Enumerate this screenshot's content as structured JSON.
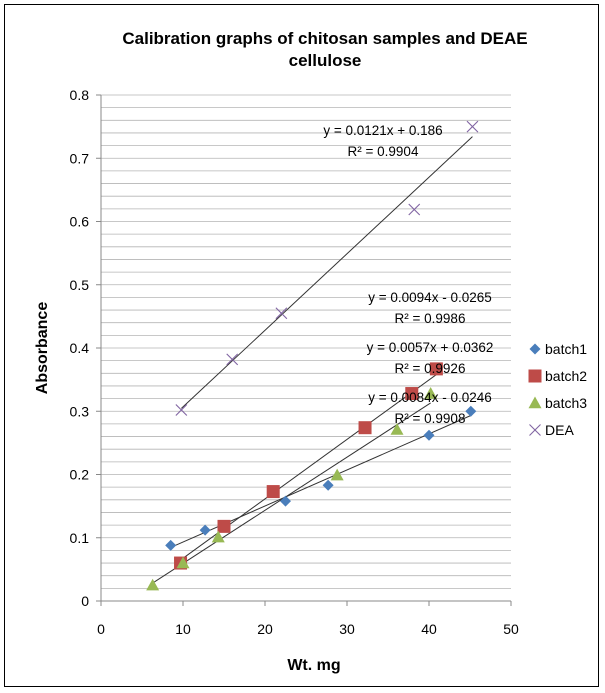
{
  "chart_data": {
    "type": "scatter",
    "title": [
      "Calibration graphs of chitosan samples and DEAE",
      "cellulose"
    ],
    "xlabel": "Wt. mg",
    "ylabel": "Absorbance",
    "xlim": [
      0,
      50
    ],
    "ylim": [
      0,
      0.8
    ],
    "x_ticks": [
      "0",
      "10",
      "20",
      "30",
      "40",
      "50"
    ],
    "y_ticks": [
      "0",
      "0.1",
      "0.2",
      "0.3",
      "0.4",
      "0.5",
      "0.6",
      "0.7",
      "0.8"
    ],
    "grid": "horizontal",
    "legend_position": "right",
    "series": [
      {
        "name": "batch1",
        "marker": "diamond",
        "color": "#4a7ebb",
        "points": [
          [
            8.5,
            0.088
          ],
          [
            12.7,
            0.112
          ],
          [
            22.5,
            0.158
          ],
          [
            27.7,
            0.183
          ],
          [
            40.0,
            0.262
          ],
          [
            45.1,
            0.3
          ]
        ],
        "trendline": {
          "slope": 0.0057,
          "intercept": 0.0362
        },
        "equation": "y = 0.0057x + 0.0362",
        "r2": "R² = 0.9926"
      },
      {
        "name": "batch2",
        "marker": "square",
        "color": "#be4b48",
        "points": [
          [
            9.7,
            0.06
          ],
          [
            15.0,
            0.118
          ],
          [
            21.0,
            0.173
          ],
          [
            32.2,
            0.274
          ],
          [
            37.9,
            0.328
          ],
          [
            40.9,
            0.367
          ]
        ],
        "trendline": {
          "slope": 0.0094,
          "intercept": -0.0265
        },
        "equation": "y = 0.0094x - 0.0265",
        "r2": "R² = 0.9986"
      },
      {
        "name": "batch3",
        "marker": "triangle",
        "color": "#98b954",
        "points": [
          [
            6.3,
            0.025
          ],
          [
            10.0,
            0.06
          ],
          [
            14.3,
            0.101
          ],
          [
            28.8,
            0.199
          ],
          [
            36.1,
            0.271
          ],
          [
            40.2,
            0.328
          ]
        ],
        "trendline": {
          "slope": 0.0084,
          "intercept": -0.0246
        },
        "equation": "y = 0.0084x - 0.0246",
        "r2": "R² = 0.9908"
      },
      {
        "name": "DEA",
        "marker": "x",
        "color": "#8064a2",
        "points": [
          [
            9.8,
            0.302
          ],
          [
            16.0,
            0.382
          ],
          [
            22.0,
            0.455
          ],
          [
            38.2,
            0.619
          ],
          [
            45.3,
            0.75
          ]
        ],
        "trendline": {
          "slope": 0.0121,
          "intercept": 0.186
        },
        "equation": "y = 0.0121x + 0.186",
        "r2": "R² = 0.9904"
      }
    ]
  }
}
